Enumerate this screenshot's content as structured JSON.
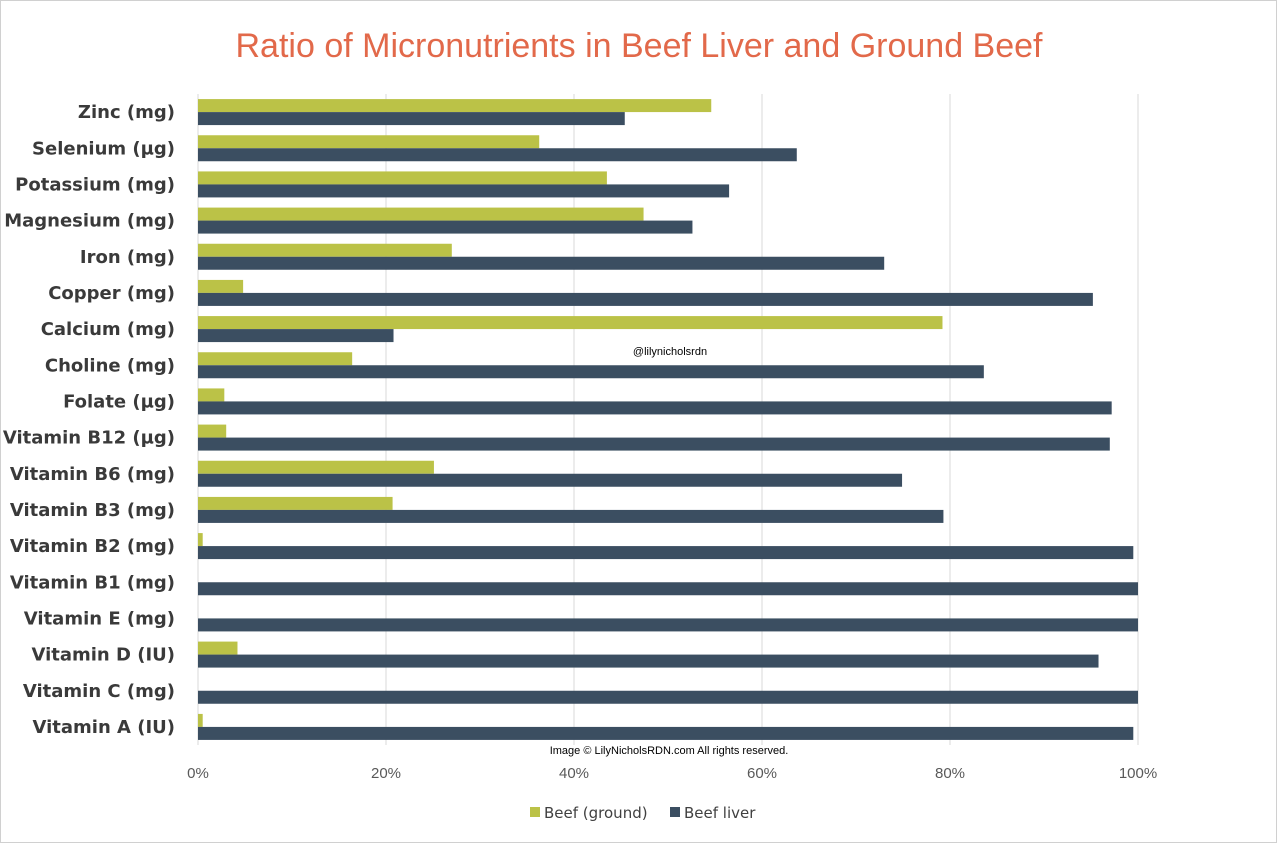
{
  "chart_data": {
    "type": "bar",
    "orientation": "horizontal",
    "title": "Ratio of Micronutrients in Beef Liver and Ground Beef",
    "categories": [
      "Zinc (mg)",
      "Selenium (µg)",
      "Potassium (mg)",
      "Magnesium (mg)",
      "Iron (mg)",
      "Copper (mg)",
      "Calcium (mg)",
      "Choline (mg)",
      "Folate (µg)",
      "Vitamin B12 (µg)",
      "Vitamin B6 (mg)",
      "Vitamin B3 (mg)",
      "Vitamin B2 (mg)",
      "Vitamin B1 (mg)",
      "Vitamin E (mg)",
      "Vitamin D (IU)",
      "Vitamin C (mg)",
      "Vitamin A (IU)"
    ],
    "series": [
      {
        "name": "Beef (ground)",
        "color": "#BBC247",
        "values": [
          54.6,
          36.3,
          43.5,
          47.4,
          27.0,
          4.8,
          79.2,
          16.4,
          2.8,
          3.0,
          25.1,
          20.7,
          0.5,
          0,
          0,
          4.2,
          0,
          0.5
        ]
      },
      {
        "name": "Beef liver",
        "color": "#3B4E61",
        "values": [
          45.4,
          63.7,
          56.5,
          52.6,
          73.0,
          95.2,
          20.8,
          83.6,
          97.2,
          97.0,
          74.9,
          79.3,
          99.5,
          100,
          100,
          95.8,
          100,
          99.5
        ]
      }
    ],
    "xaxis": {
      "min": 0,
      "max": 100,
      "ticks": [
        0,
        20,
        40,
        60,
        80,
        100
      ],
      "tick_labels": [
        "0%",
        "20%",
        "40%",
        "60%",
        "80%",
        "100%"
      ]
    },
    "grid": true,
    "legend_position": "bottom",
    "annotations": {
      "watermark": "@lilynicholsrdn",
      "copyright": "Image © LilyNicholsRDN.com  All rights reserved."
    }
  }
}
